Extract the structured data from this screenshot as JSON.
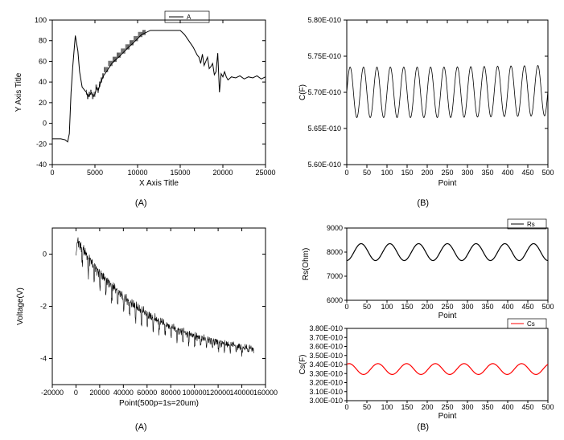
{
  "chart_top_left": {
    "type": "line",
    "xlabel": "X Axis Title",
    "ylabel": "Y Axis Title",
    "legend_label": "A",
    "caption": "(A)",
    "xlim": [
      0,
      25000
    ],
    "ylim": [
      -40,
      100
    ],
    "xticks": [
      0,
      5000,
      10000,
      15000,
      20000,
      25000
    ],
    "yticks": [
      -40,
      -20,
      0,
      20,
      40,
      60,
      80,
      100
    ],
    "line_color": "#000000",
    "line_width": 1,
    "background_color": "#ffffff",
    "data": [
      [
        0,
        -15
      ],
      [
        500,
        -15
      ],
      [
        1000,
        -15
      ],
      [
        1500,
        -16
      ],
      [
        1800,
        -18
      ],
      [
        2000,
        -10
      ],
      [
        2100,
        10
      ],
      [
        2200,
        30
      ],
      [
        2400,
        55
      ],
      [
        2700,
        85
      ],
      [
        3000,
        70
      ],
      [
        3200,
        50
      ],
      [
        3500,
        35
      ],
      [
        4000,
        30
      ],
      [
        4200,
        26
      ],
      [
        4400,
        28
      ],
      [
        4600,
        30
      ],
      [
        4800,
        26
      ],
      [
        5000,
        28
      ],
      [
        5200,
        35
      ],
      [
        5400,
        32
      ],
      [
        5600,
        38
      ],
      [
        5800,
        42
      ],
      [
        6000,
        46
      ],
      [
        6500,
        52
      ],
      [
        7000,
        58
      ],
      [
        7500,
        62
      ],
      [
        8000,
        66
      ],
      [
        8500,
        70
      ],
      [
        9000,
        74
      ],
      [
        9500,
        78
      ],
      [
        10000,
        82
      ],
      [
        10500,
        86
      ],
      [
        11000,
        88
      ],
      [
        11500,
        90
      ],
      [
        12500,
        90
      ],
      [
        13500,
        90
      ],
      [
        14500,
        90
      ],
      [
        15000,
        90
      ],
      [
        15500,
        86
      ],
      [
        16000,
        80
      ],
      [
        16500,
        74
      ],
      [
        17000,
        66
      ],
      [
        17200,
        64
      ],
      [
        17400,
        58
      ],
      [
        17600,
        67
      ],
      [
        17800,
        56
      ],
      [
        18000,
        60
      ],
      [
        18200,
        64
      ],
      [
        18400,
        53
      ],
      [
        18600,
        55
      ],
      [
        18800,
        58
      ],
      [
        19000,
        47
      ],
      [
        19200,
        50
      ],
      [
        19400,
        68
      ],
      [
        19600,
        30
      ],
      [
        19800,
        48
      ],
      [
        20000,
        45
      ],
      [
        20200,
        50
      ],
      [
        20400,
        45
      ],
      [
        20600,
        42
      ],
      [
        21000,
        45
      ],
      [
        21500,
        44
      ],
      [
        22000,
        46
      ],
      [
        22500,
        43
      ],
      [
        23000,
        45
      ],
      [
        23500,
        44
      ],
      [
        24000,
        46
      ],
      [
        24500,
        43
      ],
      [
        25000,
        45
      ]
    ]
  },
  "chart_top_right": {
    "type": "line",
    "xlabel": "Point",
    "ylabel": "C(F)",
    "caption": "(B)",
    "xlim": [
      0,
      500
    ],
    "ylim": [
      5.6e-10,
      5.8e-10
    ],
    "xticks": [
      0,
      50,
      100,
      150,
      200,
      250,
      300,
      350,
      400,
      450,
      500
    ],
    "yticks_labels": [
      "5.60E-010",
      "5.65E-010",
      "5.70E-010",
      "5.75E-010",
      "5.80E-010"
    ],
    "yticks_vals": [
      5.6e-10,
      5.65e-10,
      5.7e-10,
      5.75e-10,
      5.8e-10
    ],
    "line_color": "#000000",
    "line_width": 0.8,
    "background_color": "#ffffff",
    "amplitude": 3.5e-12,
    "baseline": 5.7e-10,
    "cycles": 15,
    "points": 500
  },
  "chart_bottom_left": {
    "type": "line",
    "xlabel": "Point(500p=1s=20um)",
    "ylabel": "Voltage(V)",
    "caption": "(A)",
    "xlim": [
      -20000,
      160000
    ],
    "ylim": [
      -5,
      1
    ],
    "xticks": [
      -20000,
      0,
      20000,
      40000,
      60000,
      80000,
      100000,
      120000,
      140000,
      160000
    ],
    "yticks": [
      -4,
      -2,
      0
    ],
    "line_color": "#000000",
    "line_width": 0.6,
    "background_color": "#ffffff"
  },
  "chart_bottom_right_top": {
    "type": "line",
    "xlabel": "Point",
    "ylabel": "Rs(Ohm)",
    "caption": "(B)",
    "legend_label": "Rs",
    "xlim": [
      0,
      500
    ],
    "ylim": [
      6000,
      9000
    ],
    "xticks": [
      0,
      50,
      100,
      150,
      200,
      250,
      300,
      350,
      400,
      450,
      500
    ],
    "yticks": [
      6000,
      7000,
      8000,
      9000
    ],
    "line_color": "#000000",
    "baseline": 8000,
    "amplitude": 350,
    "cycles": 7,
    "points": 500
  },
  "chart_bottom_right_bottom": {
    "type": "line",
    "xlabel": "Point",
    "ylabel": "Cs(F)",
    "legend_label": "Cs",
    "xlim": [
      0,
      500
    ],
    "ylim": [
      3e-10,
      3.8e-10
    ],
    "xticks": [
      0,
      50,
      100,
      150,
      200,
      250,
      300,
      350,
      400,
      450,
      500
    ],
    "yticks_labels": [
      "3.00E-010",
      "3.10E-010",
      "3.20E-010",
      "3.30E-010",
      "3.40E-010",
      "3.50E-010",
      "3.60E-010",
      "3.70E-010",
      "3.80E-010"
    ],
    "yticks_vals": [
      3e-10,
      3.1e-10,
      3.2e-10,
      3.3e-10,
      3.4e-10,
      3.5e-10,
      3.6e-10,
      3.7e-10,
      3.8e-10
    ],
    "line_color": "#ff0000",
    "baseline": 3.35e-10,
    "amplitude": 6e-12,
    "cycles": 7,
    "points": 500
  }
}
